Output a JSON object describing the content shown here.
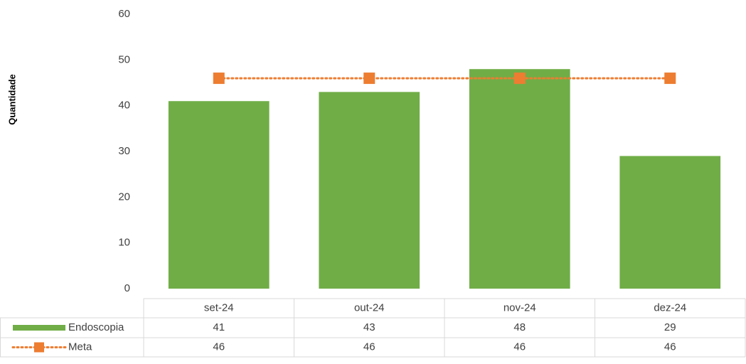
{
  "chart_data": {
    "type": "bar",
    "y_label": "Quantidade",
    "categories": [
      "set-24",
      "out-24",
      "nov-24",
      "dez-24"
    ],
    "series": [
      {
        "name": "Endoscopia",
        "type": "bar",
        "color": "#70ad47",
        "values": [
          41,
          43,
          48,
          29
        ]
      },
      {
        "name": "Meta",
        "type": "line",
        "color": "#ed7d31",
        "values": [
          46,
          46,
          46,
          46
        ]
      }
    ],
    "ylim": [
      0,
      60
    ],
    "yticks": [
      0,
      10,
      20,
      30,
      40,
      50,
      60
    ],
    "grid": false,
    "data_table": true
  }
}
